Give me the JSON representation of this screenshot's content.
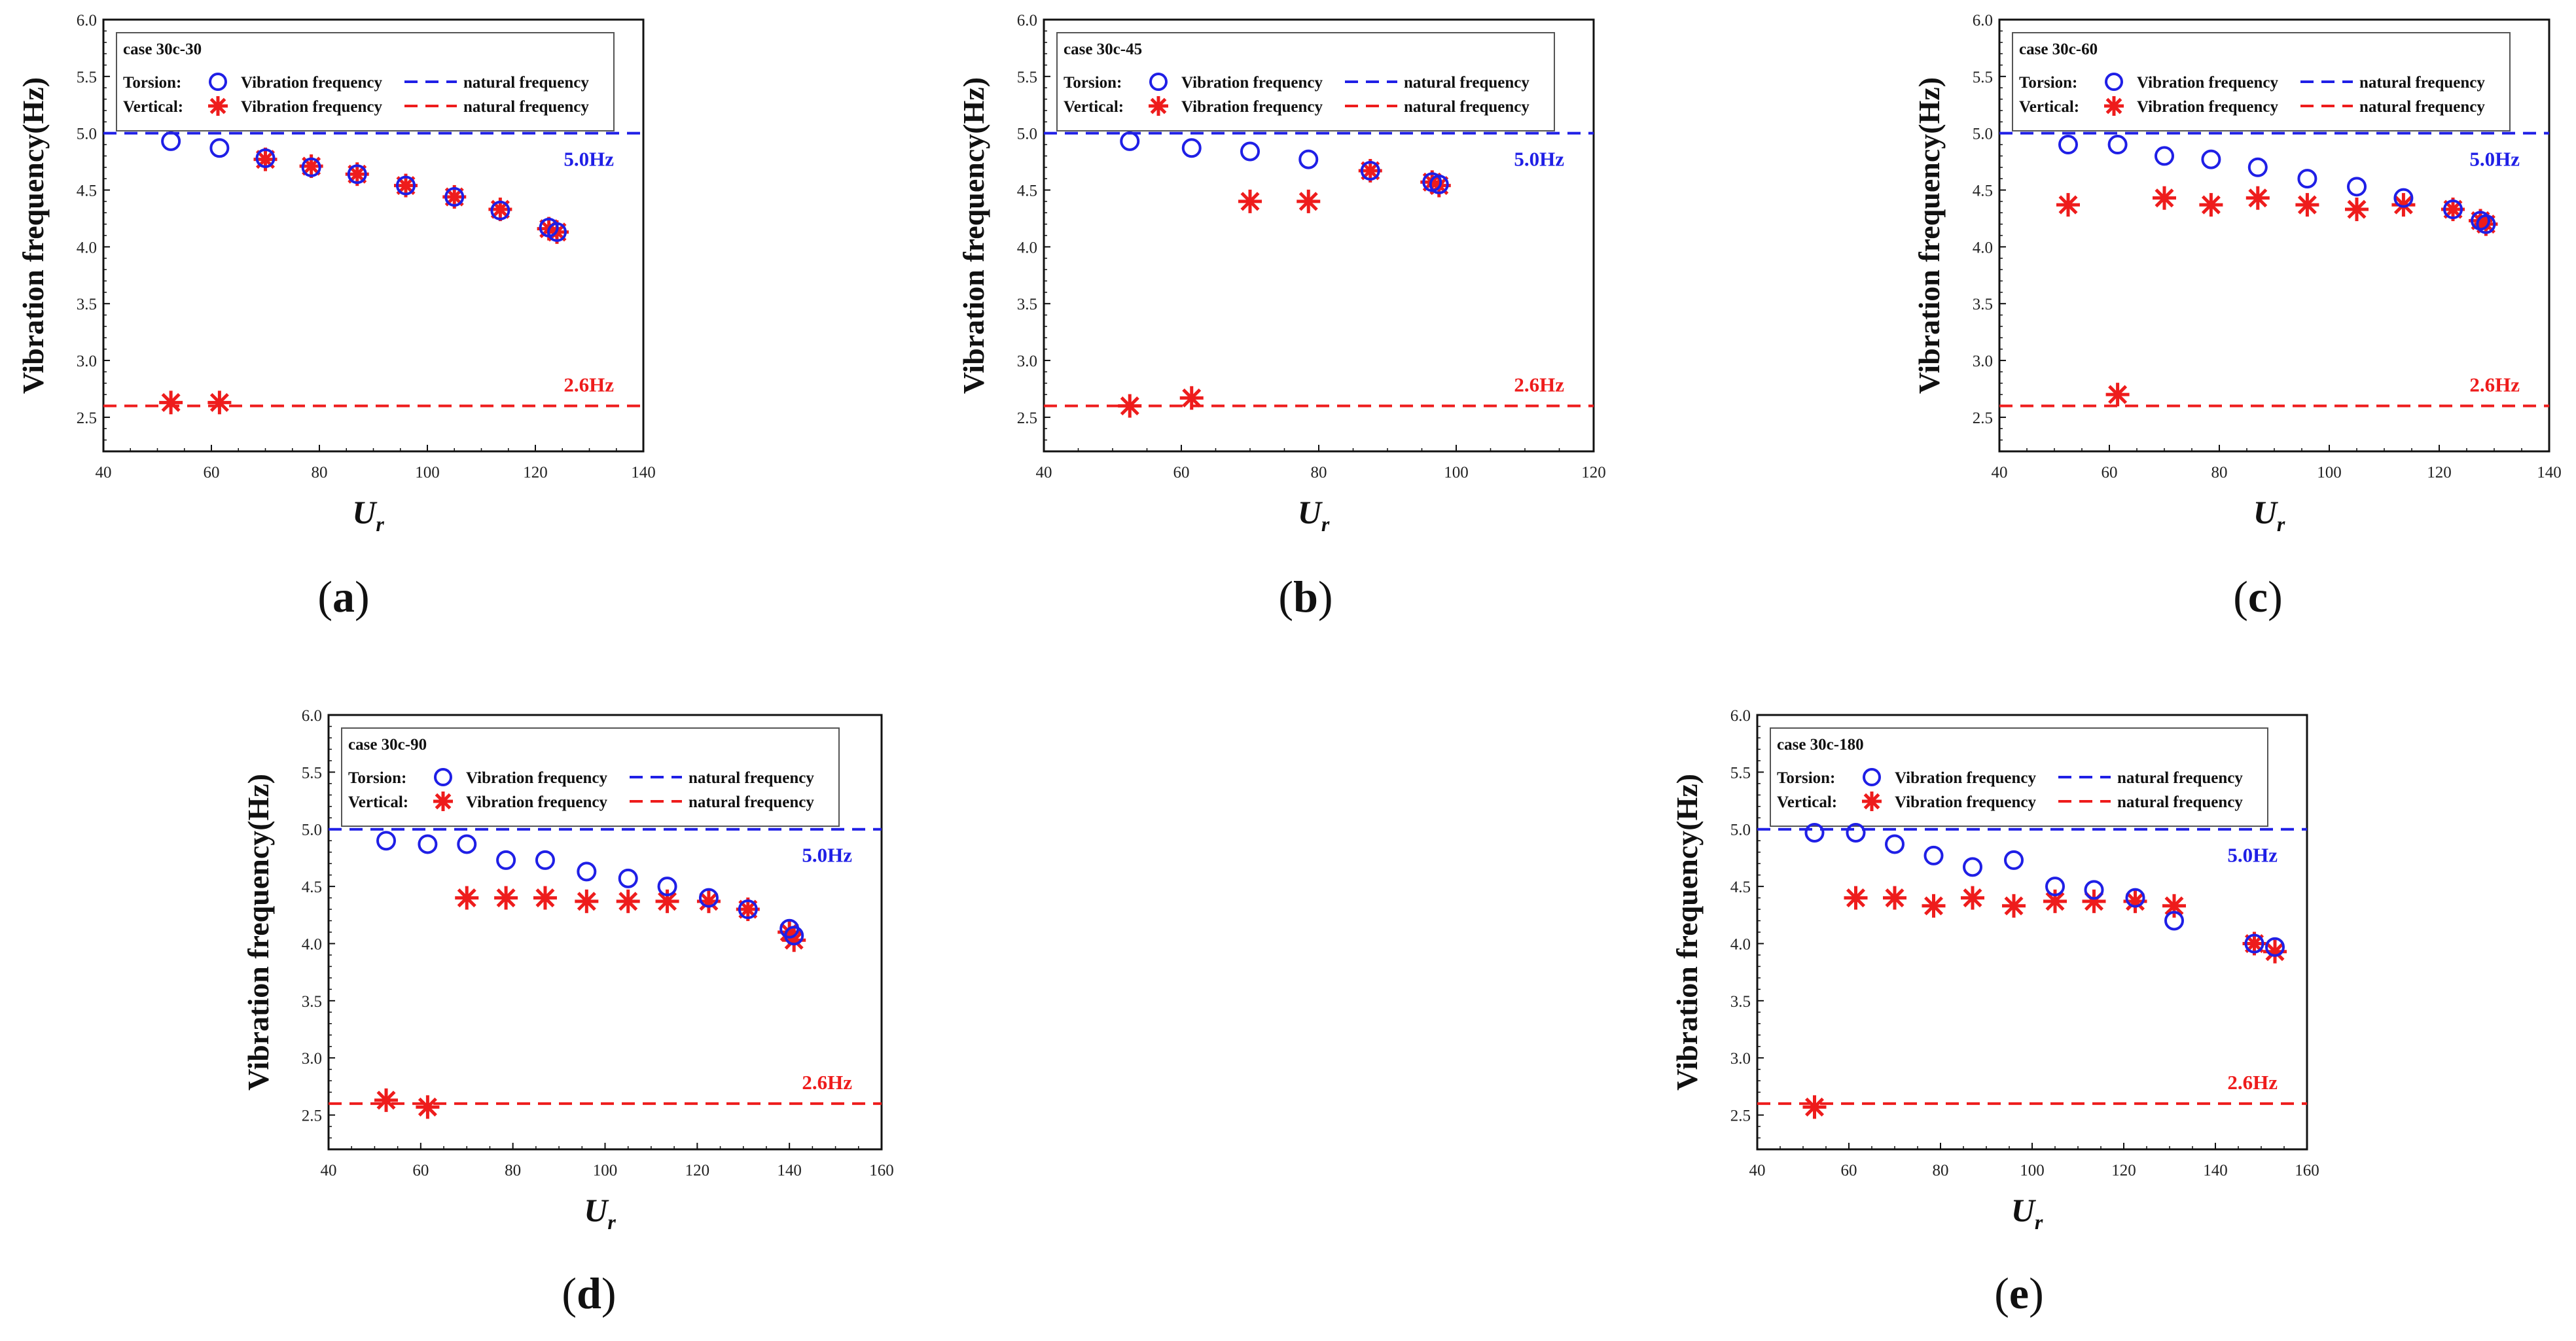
{
  "colors": {
    "torsion": "#1f1fe6",
    "vertical": "#ee1c1c",
    "torsion_ref": "#1f1fe6",
    "vertical_ref": "#ee1c1c",
    "axis": "#111111"
  },
  "chart_data": [
    {
      "type": "scatter",
      "panel_label": "a",
      "legend_title": "case 30c-30",
      "legend": {
        "torsion_label": "Torsion:",
        "vertical_label": "Vertical:",
        "vib_label": "Vibration frequency",
        "nat_label": "natural frequency"
      },
      "xlabel": "U",
      "xlabel_sub": "r",
      "ylabel": "Vibration frequency(Hz)",
      "xlim": [
        40,
        140
      ],
      "ylim": [
        2.2,
        6.0
      ],
      "xticks": [
        "40",
        "60",
        "80",
        "100",
        "120",
        "140"
      ],
      "yticks": [
        "2.5",
        "3.0",
        "3.5",
        "4.0",
        "4.5",
        "5.0",
        "5.5",
        "6.0"
      ],
      "natural_torsion": 5.0,
      "natural_vertical": 2.6,
      "natural_torsion_label": "5.0Hz",
      "natural_vertical_label": "2.6Hz",
      "series": [
        {
          "name": "Torsion: Vibration frequency",
          "marker": "circle",
          "x": [
            52.5,
            61.5,
            70,
            78.5,
            87,
            96,
            105,
            113.5,
            122.5,
            124
          ],
          "y": [
            4.93,
            4.87,
            4.78,
            4.7,
            4.64,
            4.54,
            4.44,
            4.32,
            4.17,
            4.13
          ]
        },
        {
          "name": "Vertical: Vibration frequency",
          "marker": "asterisk",
          "x": [
            52.5,
            61.5,
            70,
            78.5,
            87,
            96,
            105,
            113.5,
            122.5,
            124
          ],
          "y": [
            2.63,
            2.63,
            4.77,
            4.71,
            4.64,
            4.54,
            4.44,
            4.33,
            4.16,
            4.13
          ]
        }
      ]
    },
    {
      "type": "scatter",
      "panel_label": "b",
      "legend_title": "case 30c-45",
      "legend": {
        "torsion_label": "Torsion:",
        "vertical_label": "Vertical:",
        "vib_label": "Vibration frequency",
        "nat_label": "natural frequency"
      },
      "xlabel": "U",
      "xlabel_sub": "r",
      "ylabel": "Vibration frequency(Hz)",
      "xlim": [
        40,
        120
      ],
      "ylim": [
        2.2,
        6.0
      ],
      "xticks": [
        "40",
        "60",
        "80",
        "100",
        "120"
      ],
      "yticks": [
        "2.5",
        "3.0",
        "3.5",
        "4.0",
        "4.5",
        "5.0",
        "5.5",
        "6.0"
      ],
      "natural_torsion": 5.0,
      "natural_vertical": 2.6,
      "natural_torsion_label": "5.0Hz",
      "natural_vertical_label": "2.6Hz",
      "series": [
        {
          "name": "Torsion: Vibration frequency",
          "marker": "circle",
          "x": [
            52.5,
            61.5,
            70,
            78.5,
            87.5,
            96.5,
            97.5
          ],
          "y": [
            4.93,
            4.87,
            4.84,
            4.77,
            4.67,
            4.57,
            4.55
          ]
        },
        {
          "name": "Vertical: Vibration frequency",
          "marker": "asterisk",
          "x": [
            52.5,
            61.5,
            70,
            78.5,
            87.5,
            96.5,
            97.5
          ],
          "y": [
            2.6,
            2.67,
            4.4,
            4.4,
            4.67,
            4.57,
            4.54
          ]
        }
      ]
    },
    {
      "type": "scatter",
      "panel_label": "c",
      "legend_title": "case 30c-60",
      "legend": {
        "torsion_label": "Torsion:",
        "vertical_label": "Vertical:",
        "vib_label": "Vibration frequency",
        "nat_label": "natural frequency"
      },
      "xlabel": "U",
      "xlabel_sub": "r",
      "ylabel": "Vibration frequency(Hz)",
      "xlim": [
        40,
        140
      ],
      "ylim": [
        2.2,
        6.0
      ],
      "xticks": [
        "40",
        "60",
        "80",
        "100",
        "120",
        "140"
      ],
      "yticks": [
        "2.5",
        "3.0",
        "3.5",
        "4.0",
        "4.5",
        "5.0",
        "5.5",
        "6.0"
      ],
      "natural_torsion": 5.0,
      "natural_vertical": 2.6,
      "natural_torsion_label": "5.0Hz",
      "natural_vertical_label": "2.6Hz",
      "series": [
        {
          "name": "Torsion: Vibration frequency",
          "marker": "circle",
          "x": [
            52.5,
            61.5,
            70,
            78.5,
            87,
            96,
            105,
            113.5,
            122.5,
            127.5,
            128.5
          ],
          "y": [
            4.9,
            4.9,
            4.8,
            4.77,
            4.7,
            4.6,
            4.53,
            4.43,
            4.33,
            4.23,
            4.2
          ]
        },
        {
          "name": "Vertical: Vibration frequency",
          "marker": "asterisk",
          "x": [
            52.5,
            61.5,
            70,
            78.5,
            87,
            96,
            105,
            113.5,
            122.5,
            127.5,
            128.5
          ],
          "y": [
            4.37,
            2.7,
            4.43,
            4.37,
            4.43,
            4.37,
            4.33,
            4.37,
            4.33,
            4.23,
            4.2
          ]
        }
      ]
    },
    {
      "type": "scatter",
      "panel_label": "d",
      "legend_title": "case 30c-90",
      "legend": {
        "torsion_label": "Torsion:",
        "vertical_label": "Vertical:",
        "vib_label": "Vibration frequency",
        "nat_label": "natural frequency"
      },
      "xlabel": "U",
      "xlabel_sub": "r",
      "ylabel": "Vibration frequency(Hz)",
      "xlim": [
        40,
        160
      ],
      "ylim": [
        2.2,
        6.0
      ],
      "xticks": [
        "40",
        "60",
        "80",
        "100",
        "120",
        "140",
        "160"
      ],
      "yticks": [
        "2.5",
        "3.0",
        "3.5",
        "4.0",
        "4.5",
        "5.0",
        "5.5",
        "6.0"
      ],
      "natural_torsion": 5.0,
      "natural_vertical": 2.6,
      "natural_torsion_label": "5.0Hz",
      "natural_vertical_label": "2.6Hz",
      "series": [
        {
          "name": "Torsion: Vibration frequency",
          "marker": "circle",
          "x": [
            52.5,
            61.5,
            70,
            78.5,
            87,
            96,
            105,
            113.5,
            122.5,
            131,
            140,
            141
          ],
          "y": [
            4.9,
            4.87,
            4.87,
            4.73,
            4.73,
            4.63,
            4.57,
            4.5,
            4.4,
            4.3,
            4.13,
            4.07
          ]
        },
        {
          "name": "Vertical: Vibration frequency",
          "marker": "asterisk",
          "x": [
            52.5,
            61.5,
            70,
            78.5,
            87,
            96,
            105,
            113.5,
            122.5,
            131,
            140,
            141
          ],
          "y": [
            2.63,
            2.57,
            4.4,
            4.4,
            4.4,
            4.37,
            4.37,
            4.37,
            4.37,
            4.3,
            4.1,
            4.03
          ]
        }
      ]
    },
    {
      "type": "scatter",
      "panel_label": "e",
      "legend_title": "case 30c-180",
      "legend": {
        "torsion_label": "Torsion:",
        "vertical_label": "Vertical:",
        "vib_label": "Vibration frequency",
        "nat_label": "natural frequency"
      },
      "xlabel": "U",
      "xlabel_sub": "r",
      "ylabel": "Vibration frequency(Hz)",
      "xlim": [
        40,
        160
      ],
      "ylim": [
        2.2,
        6.0
      ],
      "xticks": [
        "40",
        "60",
        "80",
        "100",
        "120",
        "140",
        "160"
      ],
      "yticks": [
        "2.5",
        "3.0",
        "3.5",
        "4.0",
        "4.5",
        "5.0",
        "5.5",
        "6.0"
      ],
      "natural_torsion": 5.0,
      "natural_vertical": 2.6,
      "natural_torsion_label": "5.0Hz",
      "natural_vertical_label": "2.6Hz",
      "series": [
        {
          "name": "Torsion: Vibration frequency",
          "marker": "circle",
          "x": [
            52.5,
            61.5,
            70,
            78.5,
            87,
            96,
            105,
            113.5,
            122.5,
            131,
            148.5,
            153
          ],
          "y": [
            4.97,
            4.97,
            4.87,
            4.77,
            4.67,
            4.73,
            4.5,
            4.47,
            4.4,
            4.2,
            4.0,
            3.97
          ]
        },
        {
          "name": "Vertical: Vibration frequency",
          "marker": "asterisk",
          "x": [
            52.5,
            61.5,
            70,
            78.5,
            87,
            96,
            105,
            113.5,
            122.5,
            131,
            148.5,
            153
          ],
          "y": [
            2.57,
            4.4,
            4.4,
            4.33,
            4.4,
            4.33,
            4.37,
            4.37,
            4.37,
            4.33,
            4.0,
            3.93
          ]
        }
      ]
    }
  ]
}
